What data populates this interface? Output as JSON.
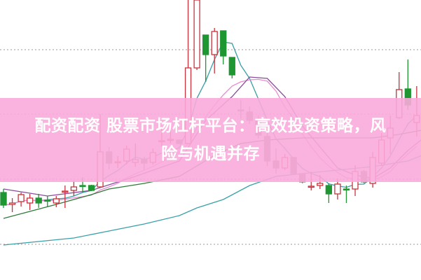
{
  "title": {
    "line1": "配资配资 股票市场杠杆平台：高效投资策略，风",
    "line2": "险与机遇并存"
  },
  "colors": {
    "banner": "#f9aada",
    "up": "#c8323c",
    "down": "#1e9632",
    "gray": "#8a8078",
    "ma5": "#3a9fa6",
    "ma10": "#e88ccf",
    "ma_mid": "#8a4a9a",
    "ma_long": "#2f7a3a",
    "ma_base": "#3aa0a8",
    "grid": "#999999",
    "text": "#ffffff"
  },
  "chart_data": {
    "type": "candlestick",
    "title": "",
    "xlabel": "",
    "ylabel": "",
    "ylim": [
      0,
      400
    ],
    "grid": true,
    "grid_levels": [
      51,
      144,
      237,
      329
    ],
    "candles": [
      {
        "o": 125,
        "c": 107,
        "h": 130,
        "l": 103,
        "color": "down"
      },
      {
        "o": 108,
        "c": 110,
        "h": 117,
        "l": 97,
        "color": "up"
      },
      {
        "o": 112,
        "c": 122,
        "h": 125,
        "l": 105,
        "color": "up"
      },
      {
        "o": 110,
        "c": 117,
        "h": 123,
        "l": 100,
        "color": "up"
      },
      {
        "o": 117,
        "c": 110,
        "h": 123,
        "l": 103,
        "color": "down"
      },
      {
        "o": 114,
        "c": 114,
        "h": 120,
        "l": 105,
        "color": "down"
      },
      {
        "o": 110,
        "c": 116,
        "h": 120,
        "l": 104,
        "color": "up"
      },
      {
        "o": 126,
        "c": 127,
        "h": 135,
        "l": 103,
        "color": "up"
      },
      {
        "o": 128,
        "c": 133,
        "h": 142,
        "l": 120,
        "color": "up"
      },
      {
        "o": 135,
        "c": 135,
        "h": 147,
        "l": 125,
        "color": "down"
      },
      {
        "o": 135,
        "c": 128,
        "h": 136,
        "l": 127,
        "color": "down"
      },
      {
        "o": 133,
        "c": 183,
        "h": 237,
        "l": 133,
        "color": "up"
      },
      {
        "o": 183,
        "c": 167,
        "h": 190,
        "l": 158,
        "color": "gray"
      },
      {
        "o": 168,
        "c": 169,
        "h": 177,
        "l": 160,
        "color": "up"
      },
      {
        "o": 170,
        "c": 187,
        "h": 192,
        "l": 165,
        "color": "up"
      },
      {
        "o": 168,
        "c": 172,
        "h": 195,
        "l": 162,
        "color": "up"
      },
      {
        "o": 172,
        "c": 167,
        "h": 176,
        "l": 157,
        "color": "gray"
      },
      {
        "o": 168,
        "c": 182,
        "h": 188,
        "l": 165,
        "color": "up"
      },
      {
        "o": 198,
        "c": 199,
        "h": 220,
        "l": 190,
        "color": "up"
      },
      {
        "o": 200,
        "c": 201,
        "h": 215,
        "l": 195,
        "color": "up"
      },
      {
        "o": 200,
        "c": 195,
        "h": 201,
        "l": 194,
        "color": "gray"
      },
      {
        "o": 195,
        "c": 303,
        "h": 400,
        "l": 195,
        "color": "up"
      },
      {
        "o": 303,
        "c": 400,
        "h": 400,
        "l": 300,
        "color": "up"
      },
      {
        "o": 350,
        "c": 322,
        "h": 350,
        "l": 283,
        "color": "down"
      },
      {
        "o": 322,
        "c": 355,
        "h": 360,
        "l": 295,
        "color": "up"
      },
      {
        "o": 356,
        "c": 320,
        "h": 356,
        "l": 308,
        "color": "down"
      },
      {
        "o": 318,
        "c": 293,
        "h": 318,
        "l": 288,
        "color": "down"
      },
      {
        "o": 243,
        "c": 243,
        "h": 257,
        "l": 230,
        "color": "gray"
      },
      {
        "o": 240,
        "c": 228,
        "h": 248,
        "l": 223,
        "color": "gray"
      },
      {
        "o": 228,
        "c": 207,
        "h": 235,
        "l": 202,
        "color": "gray"
      },
      {
        "o": 205,
        "c": 170,
        "h": 210,
        "l": 163,
        "color": "gray"
      },
      {
        "o": 170,
        "c": 160,
        "h": 188,
        "l": 152,
        "color": "gray"
      },
      {
        "o": 160,
        "c": 175,
        "h": 180,
        "l": 157,
        "color": "up"
      },
      {
        "o": 175,
        "c": 152,
        "h": 175,
        "l": 150,
        "color": "gray"
      },
      {
        "o": 152,
        "c": 140,
        "h": 152,
        "l": 138,
        "color": "gray"
      },
      {
        "o": 133,
        "c": 134,
        "h": 155,
        "l": 128,
        "color": "up"
      },
      {
        "o": 135,
        "c": 138,
        "h": 150,
        "l": 130,
        "color": "up"
      },
      {
        "o": 135,
        "c": 123,
        "h": 138,
        "l": 110,
        "color": "down"
      },
      {
        "o": 123,
        "c": 137,
        "h": 145,
        "l": 115,
        "color": "up"
      },
      {
        "o": 130,
        "c": 130,
        "h": 135,
        "l": 110,
        "color": "down"
      },
      {
        "o": 130,
        "c": 155,
        "h": 164,
        "l": 120,
        "color": "up"
      },
      {
        "o": 155,
        "c": 140,
        "h": 157,
        "l": 138,
        "color": "gray"
      },
      {
        "o": 138,
        "c": 175,
        "h": 183,
        "l": 132,
        "color": "up"
      },
      {
        "o": 167,
        "c": 200,
        "h": 210,
        "l": 163,
        "color": "up"
      },
      {
        "o": 203,
        "c": 217,
        "h": 235,
        "l": 180,
        "color": "up"
      },
      {
        "o": 232,
        "c": 272,
        "h": 297,
        "l": 230,
        "color": "up"
      },
      {
        "o": 273,
        "c": 250,
        "h": 315,
        "l": 243,
        "color": "down"
      },
      {
        "o": 225,
        "c": 235,
        "h": 277,
        "l": 205,
        "color": "up"
      }
    ],
    "moving_averages": [
      {
        "kind": "ma5",
        "color_key": "ma5"
      },
      {
        "kind": "ma10",
        "color_key": "ma10"
      },
      {
        "kind": "line",
        "color_key": "ma_mid",
        "points": [
          [
            0,
            130
          ],
          [
            5,
            120
          ],
          [
            10,
            128
          ],
          [
            15,
            148
          ],
          [
            20,
            170
          ],
          [
            23,
            228
          ],
          [
            26,
            262
          ],
          [
            28,
            290
          ],
          [
            30,
            288
          ],
          [
            32,
            262
          ],
          [
            34,
            220
          ],
          [
            36,
            190
          ],
          [
            38,
            160
          ],
          [
            40,
            150
          ],
          [
            42,
            145
          ],
          [
            44,
            160
          ],
          [
            46,
            185
          ],
          [
            48,
            205
          ]
        ]
      },
      {
        "kind": "line",
        "color_key": "ma_long",
        "points": [
          [
            0,
            88
          ],
          [
            6,
            108
          ],
          [
            10,
            122
          ],
          [
            12,
            130
          ],
          [
            16,
            138
          ],
          [
            20,
            148
          ],
          [
            24,
            178
          ],
          [
            27,
            195
          ],
          [
            30,
            200
          ],
          [
            34,
            203
          ],
          [
            38,
            203
          ],
          [
            42,
            203
          ],
          [
            45,
            208
          ],
          [
            48,
            215
          ]
        ]
      },
      {
        "kind": "line",
        "color_key": "ma_base",
        "points": [
          [
            0,
            50
          ],
          [
            4,
            55
          ],
          [
            8,
            60
          ],
          [
            12,
            70
          ],
          [
            16,
            80
          ],
          [
            20,
            92
          ],
          [
            22,
            103
          ],
          [
            25,
            115
          ],
          [
            28,
            135
          ],
          [
            31,
            148
          ],
          [
            34,
            152
          ],
          [
            38,
            157
          ],
          [
            42,
            162
          ],
          [
            46,
            170
          ],
          [
            48,
            180
          ]
        ]
      }
    ]
  }
}
